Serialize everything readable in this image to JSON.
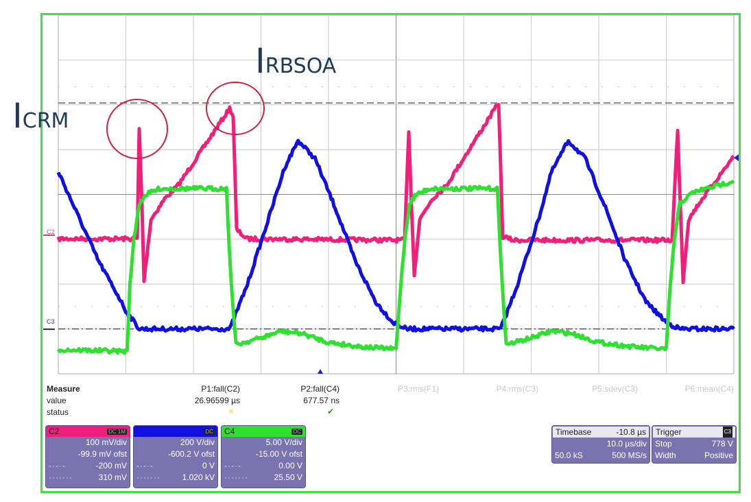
{
  "annotations": {
    "icrm_main": "I",
    "icrm_sub": "CRM",
    "irbsoa_main": "I",
    "irbsoa_sub": "RBSOA"
  },
  "channel_markers": {
    "c2": "C2",
    "c3": "C3"
  },
  "measure": {
    "title": "Measure",
    "row_value": "value",
    "row_status": "status",
    "params": [
      {
        "name": "P1:fall(C2)",
        "value": "26.96599 µs",
        "status": "✕",
        "status_color": "#e8e060",
        "active": true
      },
      {
        "name": "P2:fall(C4)",
        "value": "677.57 ns",
        "status": "✔",
        "status_color": "#2a9a2a",
        "active": true
      },
      {
        "name": "P3:rms(F1)",
        "value": "",
        "status": "",
        "active": false
      },
      {
        "name": "P4:rms(C3)",
        "value": "",
        "status": "",
        "active": false
      },
      {
        "name": "P5:sdev(C3)",
        "value": "",
        "status": "",
        "active": false
      },
      {
        "name": "P6:mean(C4)",
        "value": "",
        "status": "",
        "active": false
      }
    ]
  },
  "channels": [
    {
      "label": "C2",
      "color": "#f0207a",
      "badge": "DC 1M",
      "vdiv": "100 mV/div",
      "offset": "-99.9 mV ofst",
      "line1_sym": "-·-·-",
      "line1": "-200 mV",
      "line2_sym": "·······",
      "line2": "310 mV"
    },
    {
      "label": "C3",
      "color": "#1010e0",
      "badge": "DC",
      "vdiv": "200 V/div",
      "offset": "-600.2 V ofst",
      "line1_sym": "-·-·-",
      "line1": "0 V",
      "line2_sym": "·······",
      "line2": "1.020 kV"
    },
    {
      "label": "C4",
      "color": "#30e030",
      "badge": "DC",
      "vdiv": "5.00 V/div",
      "offset": "-15.00 V ofst",
      "line1_sym": "-·-·-",
      "line1": "0.00 V",
      "line2_sym": "·······",
      "line2": "25.50 V"
    }
  ],
  "timebase": {
    "label": "Timebase",
    "delay": "-10.8 µs",
    "tdiv": "10.0 µs/div",
    "samples": "50.0 kS",
    "rate": "500 MS/s"
  },
  "trigger": {
    "label": "Trigger",
    "mode": "Stop",
    "level": "778 V",
    "type": "Width",
    "slope": "Positive"
  },
  "chart_data": {
    "type": "line",
    "x_unit": "µs (screen, 10 µs/div)",
    "xlim": [
      0,
      100
    ],
    "ylim": [
      -4,
      4
    ],
    "y_unit": "div",
    "grid": true,
    "series": [
      {
        "name": "C2",
        "color": "#f0207a",
        "points": [
          [
            0,
            -0.99
          ],
          [
            11.68,
            -0.99
          ],
          [
            11.98,
            1.46
          ],
          [
            12.39,
            -0.25
          ],
          [
            12.69,
            -1.93
          ],
          [
            13.71,
            -0.56
          ],
          [
            15.74,
            -0.1
          ],
          [
            17.77,
            0.21
          ],
          [
            25.38,
            1.92
          ],
          [
            25.89,
            1.74
          ],
          [
            26.4,
            -0.79
          ],
          [
            27.92,
            -0.99
          ],
          [
            51.27,
            -1.02
          ],
          [
            51.88,
            1.43
          ],
          [
            52.28,
            -0.25
          ],
          [
            52.69,
            -1.78
          ],
          [
            53.5,
            -0.56
          ],
          [
            55.33,
            -0.1
          ],
          [
            57.36,
            0.18
          ],
          [
            65.18,
            2.04
          ],
          [
            65.79,
            -0.94
          ],
          [
            67.31,
            -1.02
          ],
          [
            90.86,
            -1.02
          ],
          [
            91.68,
            1.46
          ],
          [
            92.08,
            -0.25
          ],
          [
            92.49,
            -1.93
          ],
          [
            93.3,
            -0.56
          ],
          [
            94.92,
            -0.18
          ],
          [
            100,
            0.85
          ]
        ]
      },
      {
        "name": "C3",
        "color": "#1010e0",
        "points": [
          [
            0,
            0.51
          ],
          [
            3,
            -0.5
          ],
          [
            6,
            -1.5
          ],
          [
            9,
            -2.3
          ],
          [
            10,
            -2.6
          ],
          [
            12,
            -3.0
          ],
          [
            25.4,
            -3.0
          ],
          [
            28,
            -2.0
          ],
          [
            31,
            -0.6
          ],
          [
            33.5,
            0.6
          ],
          [
            35.5,
            1.2
          ],
          [
            38,
            0.8
          ],
          [
            41,
            -0.3
          ],
          [
            44,
            -1.5
          ],
          [
            47,
            -2.4
          ],
          [
            49.5,
            -2.85
          ],
          [
            51.5,
            -3.0
          ],
          [
            65.5,
            -3.0
          ],
          [
            68,
            -2.0
          ],
          [
            71,
            -0.6
          ],
          [
            73,
            0.5
          ],
          [
            75.5,
            1.2
          ],
          [
            78,
            0.8
          ],
          [
            81,
            -0.3
          ],
          [
            84,
            -1.5
          ],
          [
            87,
            -2.4
          ],
          [
            90,
            -2.85
          ],
          [
            92,
            -3.0
          ],
          [
            100,
            -3.0
          ]
        ]
      },
      {
        "name": "C4",
        "color": "#30e030",
        "points": [
          [
            0,
            -3.46
          ],
          [
            10.2,
            -3.5
          ],
          [
            10.6,
            -2.0
          ],
          [
            11.2,
            -1.0
          ],
          [
            12,
            -0.2
          ],
          [
            13,
            0.0
          ],
          [
            15,
            0.13
          ],
          [
            24.9,
            0.13
          ],
          [
            25.3,
            -1.2
          ],
          [
            25.8,
            -2.4
          ],
          [
            26.3,
            -3.35
          ],
          [
            30,
            -3.2
          ],
          [
            33,
            -3.05
          ],
          [
            36,
            -3.1
          ],
          [
            40,
            -3.3
          ],
          [
            45,
            -3.4
          ],
          [
            50,
            -3.45
          ],
          [
            50.7,
            -2.0
          ],
          [
            51.3,
            -1.0
          ],
          [
            52,
            -0.2
          ],
          [
            53,
            0.0
          ],
          [
            55,
            0.13
          ],
          [
            65,
            0.13
          ],
          [
            65.4,
            -1.2
          ],
          [
            65.9,
            -2.4
          ],
          [
            66.3,
            -3.35
          ],
          [
            70,
            -3.2
          ],
          [
            73,
            -3.05
          ],
          [
            76,
            -3.1
          ],
          [
            80,
            -3.3
          ],
          [
            85,
            -3.4
          ],
          [
            90,
            -3.45
          ],
          [
            90.6,
            -2.0
          ],
          [
            91.2,
            -1.0
          ],
          [
            92,
            -0.2
          ],
          [
            94,
            0.05
          ],
          [
            100,
            0.3
          ]
        ]
      }
    ],
    "reference_lines": [
      {
        "style": "dashed",
        "y": 2.04
      },
      {
        "style": "dash-dot",
        "y": -3.0
      }
    ]
  }
}
